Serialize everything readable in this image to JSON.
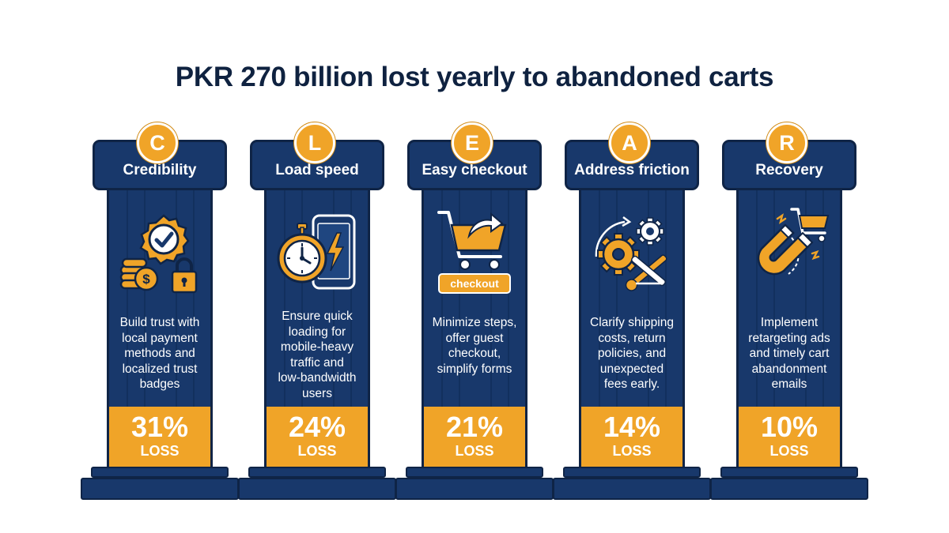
{
  "title": "PKR 270 billion lost yearly to abandoned carts",
  "colors": {
    "navy": "#18386b",
    "dark_navy": "#0f2240",
    "orange": "#f0a428",
    "white": "#ffffff"
  },
  "pillars": [
    {
      "letter": "C",
      "label": "Credibility",
      "icon": "trust-badge-coins-lock-icon",
      "desc_lines": [
        "Build trust with",
        "local payment",
        "methods and",
        "localized trust",
        "badges"
      ],
      "percent": "31%",
      "loss": "LOSS"
    },
    {
      "letter": "L",
      "label": "Load speed",
      "icon": "stopwatch-phone-lightning-icon",
      "desc_lines": [
        "Ensure quick",
        "loading for",
        "mobile-heavy",
        "traffic and",
        "low-bandwidth",
        "users"
      ],
      "percent": "24%",
      "loss": "LOSS"
    },
    {
      "letter": "E",
      "label": "Easy checkout",
      "icon": "cart-checkout-icon",
      "icon_text": "checkout",
      "desc_lines": [
        "Minimize steps,",
        "offer guest",
        "checkout,",
        "simplify forms"
      ],
      "percent": "21%",
      "loss": "LOSS"
    },
    {
      "letter": "A",
      "label": "Address friction",
      "icon": "gears-tools-icon",
      "desc_lines": [
        "Clarify shipping",
        "costs, return",
        "policies, and",
        "unexpected",
        "fees early."
      ],
      "percent": "14%",
      "loss": "LOSS"
    },
    {
      "letter": "R",
      "label": "Recovery",
      "icon": "magnet-cart-icon",
      "desc_lines": [
        "Implement",
        "retargeting ads",
        "and timely cart",
        "abandonment",
        "emails"
      ],
      "percent": "10%",
      "loss": "LOSS"
    }
  ]
}
